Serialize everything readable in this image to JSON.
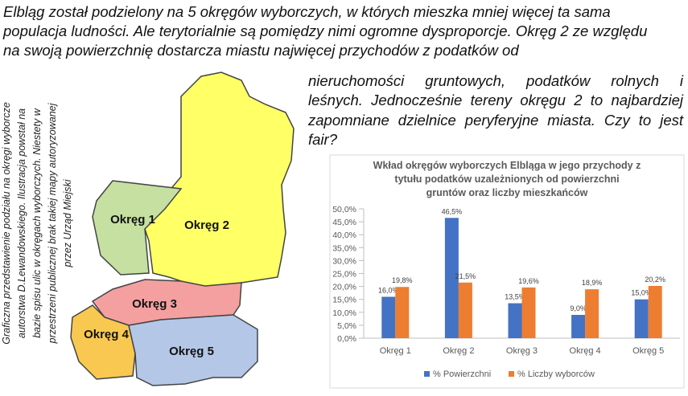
{
  "text": {
    "lines": [
      "Elbląg został podzielony na 5 okręgów wyborczych, w których mieszka mniej więcej ta sama",
      "populacja ludności. Ale terytorialnie są pomiędzy nimi ogromne dysproporcje. Okręg 2 ze względu",
      "na swoją powierzchnię dostarcza miastu najwięcej przychodów z podatków od",
      "nieruchomości gruntowych, podatków rolnych i",
      "leśnych. Jednocześnie tereny okręgu 2 to najbardziej",
      "zapomniane dzielnice peryferyjne miasta.  Czy to jest",
      "fair?"
    ]
  },
  "map": {
    "caption": [
      "Graficzna przedstawienie podziału na okręgi wyborcze",
      "autorstwa D.Lewandowskiego. Ilustracja powstał na",
      "bazie spisu ulic w okręgach wyborczych. Niestety w",
      "przestrzeni publicznej brak takiej mapy autoryzowanej",
      "przez Urząd Miejski"
    ],
    "districts": [
      "Okręg 1",
      "Okręg 2",
      "Okręg 3",
      "Okręg 4",
      "Okręg 5"
    ]
  },
  "chart_data": {
    "type": "bar",
    "title": [
      "Wkład okręgów wyborczych Elbląga w jego przychody z",
      "tytułu podatków uzależnionych od powierzchni",
      "gruntów oraz liczby mieszkańców"
    ],
    "categories": [
      "Okręg 1",
      "Okręg 2",
      "Okręg 3",
      "Okręg 4",
      "Okręg 5"
    ],
    "series": [
      {
        "name": "% Powierzchni",
        "color": "#4472c4",
        "values": [
          16.0,
          46.5,
          13.5,
          9.0,
          15.0
        ],
        "value_labels": [
          "16,0%",
          "46,5%",
          "13,5%",
          "9,0%",
          "15,0%"
        ]
      },
      {
        "name": "% Liczby wyborców",
        "color": "#ed7d31",
        "values": [
          19.8,
          21.5,
          19.6,
          18.9,
          20.2
        ],
        "value_labels": [
          "19,8%",
          "21,5%",
          "19,6%",
          "18,9%",
          "20,2%"
        ]
      }
    ],
    "ylim": [
      0,
      50
    ],
    "yticks": [
      {
        "value": 0,
        "label": "0,0%"
      },
      {
        "value": 5,
        "label": "5,0%"
      },
      {
        "value": 10,
        "label": "10,0%"
      },
      {
        "value": 15,
        "label": "15,0%"
      },
      {
        "value": 20,
        "label": "20,0%"
      },
      {
        "value": 25,
        "label": "25,0%"
      },
      {
        "value": 30,
        "label": "30,0%"
      },
      {
        "value": 35,
        "label": "35,0%"
      },
      {
        "value": 40,
        "label": "40,0%"
      },
      {
        "value": 45,
        "label": "45,0%"
      },
      {
        "value": 50,
        "label": "50,0%"
      }
    ],
    "legend": "bottom"
  }
}
